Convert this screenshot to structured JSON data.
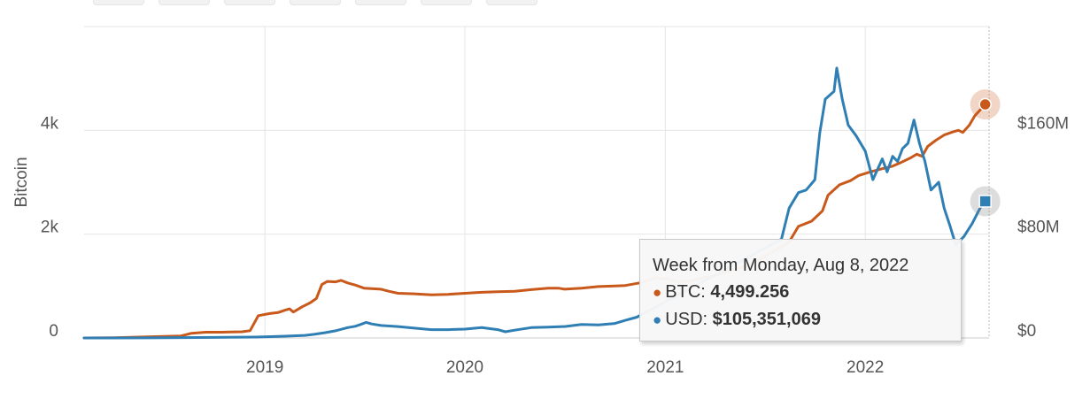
{
  "chart_data": {
    "type": "line",
    "ylabel_left": "Bitcoin",
    "y_left_ticks": [
      "0",
      "2k",
      "4k"
    ],
    "y_left_lim": [
      0,
      6000
    ],
    "y_right_ticks": [
      "$0",
      "$80M",
      "$160M"
    ],
    "y_right_lim": [
      0,
      240000000
    ],
    "x_ticks": [
      "2019",
      "2020",
      "2021",
      "2022"
    ],
    "x_range": [
      "2018-02-05",
      "2022-08-15"
    ],
    "grid": true,
    "series": [
      {
        "name": "BTC",
        "axis": "left",
        "color": "#c9591b",
        "points": [
          [
            "2018-02-05",
            0
          ],
          [
            "2018-04-01",
            5
          ],
          [
            "2018-06-01",
            20
          ],
          [
            "2018-08-01",
            40
          ],
          [
            "2018-08-20",
            90
          ],
          [
            "2018-09-15",
            110
          ],
          [
            "2018-10-15",
            110
          ],
          [
            "2018-11-20",
            120
          ],
          [
            "2018-12-05",
            140
          ],
          [
            "2018-12-20",
            430
          ],
          [
            "2019-01-10",
            470
          ],
          [
            "2019-01-25",
            490
          ],
          [
            "2019-02-05",
            530
          ],
          [
            "2019-02-15",
            560
          ],
          [
            "2019-02-22",
            500
          ],
          [
            "2019-03-10",
            600
          ],
          [
            "2019-03-25",
            680
          ],
          [
            "2019-04-05",
            760
          ],
          [
            "2019-04-15",
            1030
          ],
          [
            "2019-04-25",
            1090
          ],
          [
            "2019-05-10",
            1080
          ],
          [
            "2019-05-20",
            1110
          ],
          [
            "2019-06-01",
            1060
          ],
          [
            "2019-06-15",
            1020
          ],
          [
            "2019-07-01",
            960
          ],
          [
            "2019-08-01",
            940
          ],
          [
            "2019-08-15",
            900
          ],
          [
            "2019-09-01",
            860
          ],
          [
            "2019-10-01",
            850
          ],
          [
            "2019-11-01",
            830
          ],
          [
            "2019-12-01",
            840
          ],
          [
            "2020-01-01",
            860
          ],
          [
            "2020-02-01",
            880
          ],
          [
            "2020-03-01",
            890
          ],
          [
            "2020-04-01",
            900
          ],
          [
            "2020-05-01",
            930
          ],
          [
            "2020-06-01",
            960
          ],
          [
            "2020-06-20",
            960
          ],
          [
            "2020-07-01",
            940
          ],
          [
            "2020-08-01",
            960
          ],
          [
            "2020-09-01",
            990
          ],
          [
            "2020-10-01",
            1000
          ],
          [
            "2020-10-20",
            1010
          ],
          [
            "2020-11-15",
            1060
          ],
          [
            "2020-12-01",
            1110
          ],
          [
            "2020-12-15",
            1160
          ],
          [
            "2021-01-05",
            1130
          ],
          [
            "2021-01-25",
            1080
          ],
          [
            "2021-02-15",
            1100
          ],
          [
            "2021-04-01",
            1200
          ],
          [
            "2021-06-01",
            1400
          ],
          [
            "2021-07-15",
            1650
          ],
          [
            "2021-08-15",
            1850
          ],
          [
            "2021-09-01",
            2150
          ],
          [
            "2021-09-25",
            2250
          ],
          [
            "2021-10-15",
            2450
          ],
          [
            "2021-10-25",
            2750
          ],
          [
            "2021-11-15",
            2950
          ],
          [
            "2021-12-05",
            3030
          ],
          [
            "2021-12-20",
            3130
          ],
          [
            "2022-01-10",
            3200
          ],
          [
            "2022-02-01",
            3260
          ],
          [
            "2022-02-20",
            3310
          ],
          [
            "2022-03-05",
            3370
          ],
          [
            "2022-03-25",
            3470
          ],
          [
            "2022-04-05",
            3540
          ],
          [
            "2022-04-15",
            3500
          ],
          [
            "2022-04-25",
            3690
          ],
          [
            "2022-05-10",
            3810
          ],
          [
            "2022-05-25",
            3910
          ],
          [
            "2022-06-10",
            3970
          ],
          [
            "2022-06-20",
            4000
          ],
          [
            "2022-06-28",
            3960
          ],
          [
            "2022-07-10",
            4100
          ],
          [
            "2022-07-20",
            4280
          ],
          [
            "2022-08-01",
            4420
          ],
          [
            "2022-08-08",
            4499.256
          ]
        ]
      },
      {
        "name": "USD",
        "axis": "right",
        "color": "#2f7fb5",
        "points": [
          [
            "2018-02-05",
            0
          ],
          [
            "2018-06-01",
            100000
          ],
          [
            "2018-10-01",
            400000
          ],
          [
            "2018-12-15",
            700000
          ],
          [
            "2019-02-01",
            1300000
          ],
          [
            "2019-03-15",
            2000000
          ],
          [
            "2019-04-01",
            2800000
          ],
          [
            "2019-04-20",
            4000000
          ],
          [
            "2019-05-10",
            5500000
          ],
          [
            "2019-06-01",
            8000000
          ],
          [
            "2019-06-15",
            9000000
          ],
          [
            "2019-06-25",
            10400000
          ],
          [
            "2019-07-05",
            12000000
          ],
          [
            "2019-07-15",
            10800000
          ],
          [
            "2019-08-01",
            9600000
          ],
          [
            "2019-09-01",
            8800000
          ],
          [
            "2019-10-01",
            7600000
          ],
          [
            "2019-11-01",
            6400000
          ],
          [
            "2019-12-01",
            6400000
          ],
          [
            "2020-01-01",
            6800000
          ],
          [
            "2020-02-01",
            8000000
          ],
          [
            "2020-03-01",
            6400000
          ],
          [
            "2020-03-15",
            4800000
          ],
          [
            "2020-04-01",
            6000000
          ],
          [
            "2020-05-01",
            8000000
          ],
          [
            "2020-06-01",
            8400000
          ],
          [
            "2020-07-01",
            8800000
          ],
          [
            "2020-08-01",
            10400000
          ],
          [
            "2020-09-01",
            10000000
          ],
          [
            "2020-10-01",
            11200000
          ],
          [
            "2020-10-20",
            13600000
          ],
          [
            "2020-11-10",
            16000000
          ],
          [
            "2021-08-01",
            76000000
          ],
          [
            "2021-08-15",
            100000000
          ],
          [
            "2021-09-01",
            112000000
          ],
          [
            "2021-09-15",
            114000000
          ],
          [
            "2021-10-01",
            122000000
          ],
          [
            "2021-10-10",
            158000000
          ],
          [
            "2021-10-20",
            184000000
          ],
          [
            "2021-11-05",
            190000000
          ],
          [
            "2021-11-10",
            208000000
          ],
          [
            "2021-11-20",
            184000000
          ],
          [
            "2021-12-01",
            164000000
          ],
          [
            "2021-12-15",
            156000000
          ],
          [
            "2022-01-01",
            144000000
          ],
          [
            "2022-01-15",
            122000000
          ],
          [
            "2022-02-01",
            138000000
          ],
          [
            "2022-02-10",
            128000000
          ],
          [
            "2022-02-20",
            140000000
          ],
          [
            "2022-03-01",
            136000000
          ],
          [
            "2022-03-10",
            146000000
          ],
          [
            "2022-03-20",
            150000000
          ],
          [
            "2022-03-31",
            168000000
          ],
          [
            "2022-04-10",
            150000000
          ],
          [
            "2022-04-20",
            136000000
          ],
          [
            "2022-05-01",
            114000000
          ],
          [
            "2022-05-15",
            120000000
          ],
          [
            "2022-05-25",
            100000000
          ],
          [
            "2022-06-05",
            86000000
          ],
          [
            "2022-06-15",
            72000000
          ],
          [
            "2022-06-30",
            78000000
          ],
          [
            "2022-07-15",
            88000000
          ],
          [
            "2022-08-01",
            102000000
          ],
          [
            "2022-08-08",
            105351069
          ]
        ]
      }
    ]
  },
  "tooltip": {
    "title": "Week from Monday, Aug 8, 2022",
    "btc_label": "BTC: ",
    "btc_value": "4,499.256",
    "usd_label": "USD: ",
    "usd_value": "$105,351,069",
    "btc_dot_color": "#c9591b",
    "usd_dot_color": "#2f7fb5"
  }
}
